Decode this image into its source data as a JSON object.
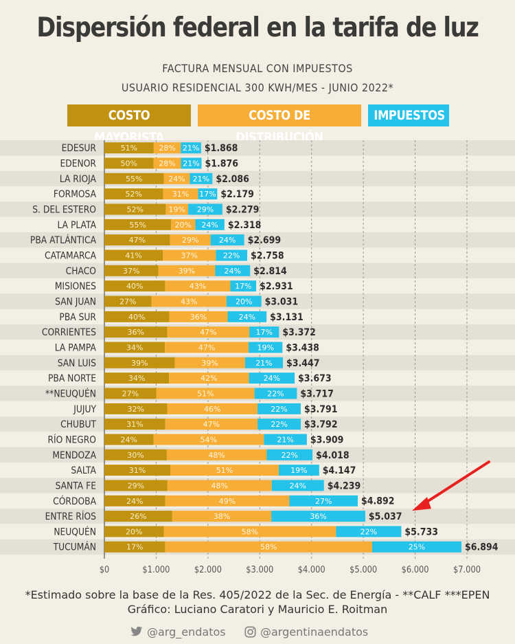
{
  "title": "Dispersión federal en la tarifa de luz",
  "subtitle1": "FACTURA MENSUAL CON IMPUESTOS",
  "subtitle2": "USUARIO RESIDENCIAL 300 KWH/MES  -  JUNIO 2022*",
  "legend": {
    "mayorista": "COSTO MAYORISTA",
    "distribucion": "COSTO DE DISTRIBUCIÓN",
    "impuestos": "IMPUESTOS"
  },
  "colors": {
    "mayorista": "#c1920f",
    "distribucion": "#f7ae36",
    "impuestos": "#25c2ea",
    "background": "#f3efe4",
    "stripe": "#e4e0d6",
    "arrow": "#e8211e"
  },
  "footer": {
    "note": "*Estimado sobre la base de la Res. 405/2022 de la Sec. de Energía  -  **CALF  ***EPEN",
    "credits": "Gráfico: Luciano Caratori y Mauricio E. Roitman",
    "twitter": "@arg_endatos",
    "instagram": "@argentinaendatos"
  },
  "icons": {
    "twitter": "twitter-bird-icon",
    "instagram": "instagram-icon"
  },
  "chart_data": {
    "type": "bar",
    "orientation": "horizontal",
    "stacked": true,
    "xlim": [
      0,
      7000
    ],
    "x_ticks": [
      "$0",
      "$1.000",
      "$2.000",
      "$3.000",
      "$4.000",
      "$5.000",
      "$6.000",
      "$7.000"
    ],
    "grid": "vertical dashed",
    "categories": [
      "EDESUR",
      "EDENOR",
      "LA RIOJA",
      "FORMOSA",
      "S. DEL ESTERO",
      "LA PLATA",
      "PBA ATLÁNTICA",
      "CATAMARCA",
      "CHACO",
      "MISIONES",
      "SAN JUAN",
      "PBA SUR",
      "CORRIENTES",
      "LA PAMPA",
      "SAN LUIS",
      "PBA NORTE",
      "**NEUQUÉN",
      "JUJUY",
      "CHUBUT",
      "RÍO NEGRO",
      "MENDOZA",
      "SALTA",
      "SANTA FE",
      "CÓRDOBA",
      "ENTRE RÍOS",
      "NEUQUÉN",
      "TUCUMÁN"
    ],
    "totals": [
      1868,
      1876,
      2086,
      2179,
      2279,
      2318,
      2699,
      2758,
      2814,
      2931,
      3031,
      3131,
      3372,
      3438,
      3447,
      3673,
      3717,
      3791,
      3792,
      3909,
      4018,
      4147,
      4239,
      4892,
      5037,
      5733,
      6894
    ],
    "total_labels": [
      "$1.868",
      "$1.876",
      "$2.086",
      "$2.179",
      "$2.279",
      "$2.318",
      "$2.699",
      "$2.758",
      "$2.814",
      "$2.931",
      "$3.031",
      "$3.131",
      "$3.372",
      "$3.438",
      "$3.447",
      "$3.673",
      "$3.717",
      "$3.791",
      "$3.792",
      "$3.909",
      "$4.018",
      "$4.147",
      "$4.239",
      "$4.892",
      "$5.037",
      "$5.733",
      "$6.894"
    ],
    "series": [
      {
        "name": "COSTO MAYORISTA",
        "percent": [
          51,
          50,
          55,
          52,
          52,
          55,
          47,
          41,
          37,
          40,
          27,
          40,
          36,
          34,
          39,
          34,
          27,
          32,
          31,
          24,
          30,
          31,
          29,
          24,
          26,
          20,
          17
        ]
      },
      {
        "name": "COSTO DE DISTRIBUCIÓN",
        "percent": [
          28,
          28,
          24,
          31,
          19,
          20,
          29,
          37,
          39,
          43,
          43,
          36,
          47,
          47,
          39,
          42,
          51,
          46,
          47,
          54,
          48,
          51,
          48,
          49,
          38,
          58,
          58
        ]
      },
      {
        "name": "IMPUESTOS",
        "percent": [
          21,
          21,
          21,
          17,
          29,
          24,
          24,
          22,
          24,
          17,
          20,
          24,
          17,
          19,
          21,
          24,
          22,
          22,
          22,
          21,
          22,
          19,
          24,
          27,
          36,
          22,
          25
        ]
      }
    ],
    "highlight": "ENTRE RÍOS"
  }
}
